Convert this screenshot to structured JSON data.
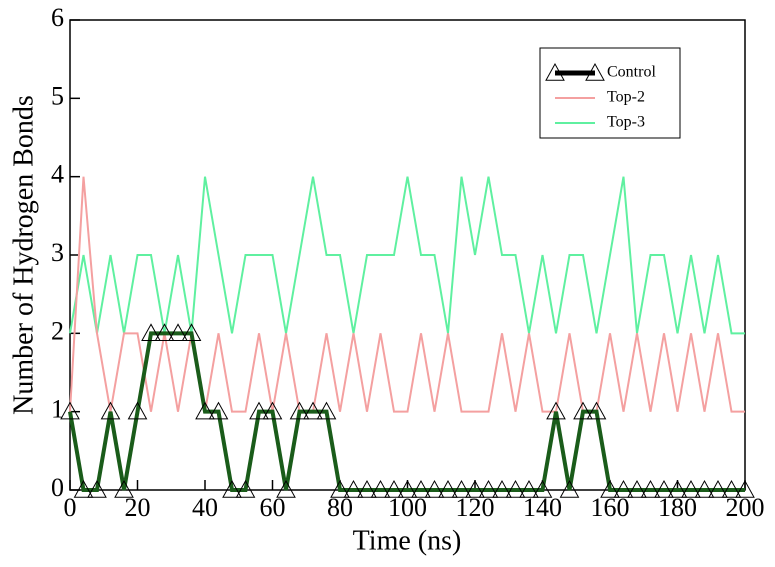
{
  "chart_data": {
    "type": "line",
    "xlabel": "Time (ns)",
    "ylabel": "Number of Hydrogen Bonds",
    "x": [
      0,
      4,
      8,
      12,
      16,
      20,
      24,
      28,
      32,
      36,
      40,
      44,
      48,
      52,
      56,
      60,
      64,
      68,
      72,
      76,
      80,
      84,
      88,
      92,
      96,
      100,
      104,
      108,
      112,
      116,
      120,
      124,
      128,
      132,
      136,
      140,
      144,
      148,
      152,
      156,
      160,
      164,
      168,
      172,
      176,
      180,
      184,
      188,
      192,
      196,
      200
    ],
    "series": [
      {
        "name": "Control",
        "color": "#1a5c1a",
        "marker": "triangle",
        "values": [
          1,
          0,
          0,
          1,
          0,
          1,
          2,
          2,
          2,
          2,
          1,
          1,
          0,
          0,
          1,
          1,
          0,
          1,
          1,
          1,
          0,
          0,
          0,
          0,
          0,
          0,
          0,
          0,
          0,
          0,
          0,
          0,
          0,
          0,
          0,
          0,
          1,
          0,
          1,
          1,
          0,
          0,
          0,
          0,
          0,
          0,
          0,
          0,
          0,
          0,
          0
        ]
      },
      {
        "name": "Top-2",
        "color": "#f4a0a0",
        "values": [
          1,
          4,
          2,
          1,
          2,
          2,
          1,
          2,
          1,
          2,
          1,
          2,
          1,
          1,
          2,
          1,
          2,
          1,
          1,
          2,
          1,
          2,
          1,
          2,
          1,
          1,
          2,
          1,
          2,
          1,
          1,
          1,
          2,
          1,
          2,
          1,
          1,
          2,
          1,
          1,
          2,
          1,
          2,
          1,
          2,
          1,
          2,
          1,
          2,
          1,
          1
        ]
      },
      {
        "name": "Top-3",
        "color": "#5ff0a0",
        "values": [
          2,
          3,
          2,
          3,
          2,
          3,
          3,
          2,
          3,
          2,
          4,
          3,
          2,
          3,
          3,
          3,
          2,
          3,
          4,
          3,
          3,
          2,
          3,
          3,
          3,
          4,
          3,
          3,
          2,
          4,
          3,
          4,
          3,
          3,
          2,
          3,
          2,
          3,
          3,
          2,
          3,
          4,
          2,
          3,
          3,
          2,
          3,
          2,
          3,
          2,
          2
        ]
      }
    ],
    "xlim": [
      0,
      200
    ],
    "ylim": [
      0,
      6
    ],
    "xticks": [
      0,
      20,
      40,
      60,
      80,
      100,
      120,
      140,
      160,
      180,
      200
    ],
    "yticks": [
      0,
      1,
      2,
      3,
      4,
      5,
      6
    ],
    "legend": "upper right"
  }
}
